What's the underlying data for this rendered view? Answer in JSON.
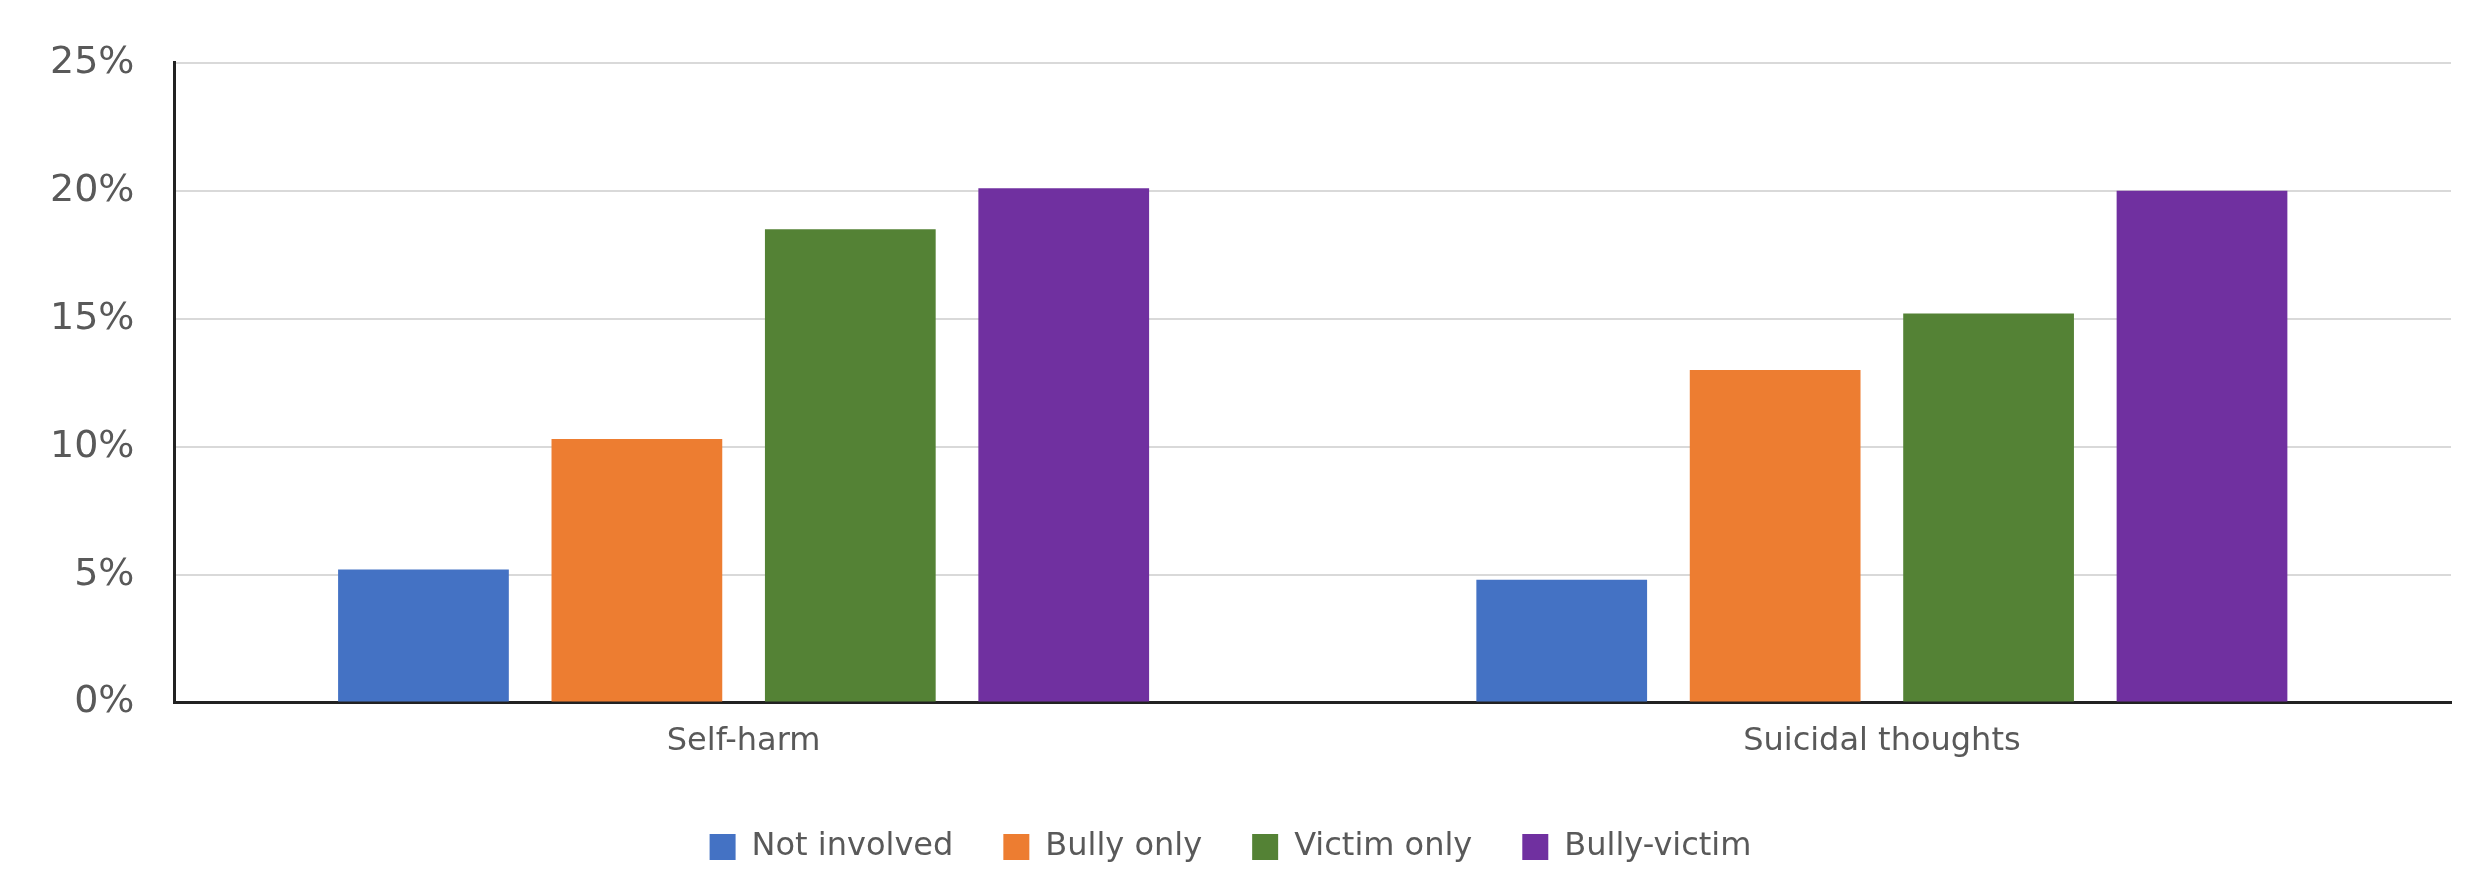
{
  "chart_data": {
    "type": "bar",
    "categories": [
      "Self-harm",
      "Suicidal thoughts"
    ],
    "series": [
      {
        "name": "Not involved",
        "color": "#4472c4",
        "values": [
          5.2,
          4.8
        ]
      },
      {
        "name": "Bully only",
        "color": "#ed7d31",
        "values": [
          10.3,
          13.0
        ]
      },
      {
        "name": "Victim only",
        "color": "#548235",
        "values": [
          18.5,
          15.2
        ]
      },
      {
        "name": "Bully-victim",
        "color": "#7030a0",
        "values": [
          20.1,
          20.0
        ]
      }
    ],
    "ylim": [
      0,
      25
    ],
    "yticks": [
      {
        "value": 0,
        "label": "0%"
      },
      {
        "value": 5,
        "label": "5%"
      },
      {
        "value": 10,
        "label": "10%"
      },
      {
        "value": 15,
        "label": "15%"
      },
      {
        "value": 20,
        "label": "20%"
      },
      {
        "value": 25,
        "label": "25%"
      }
    ],
    "grid": "y",
    "legend": "bottom"
  }
}
